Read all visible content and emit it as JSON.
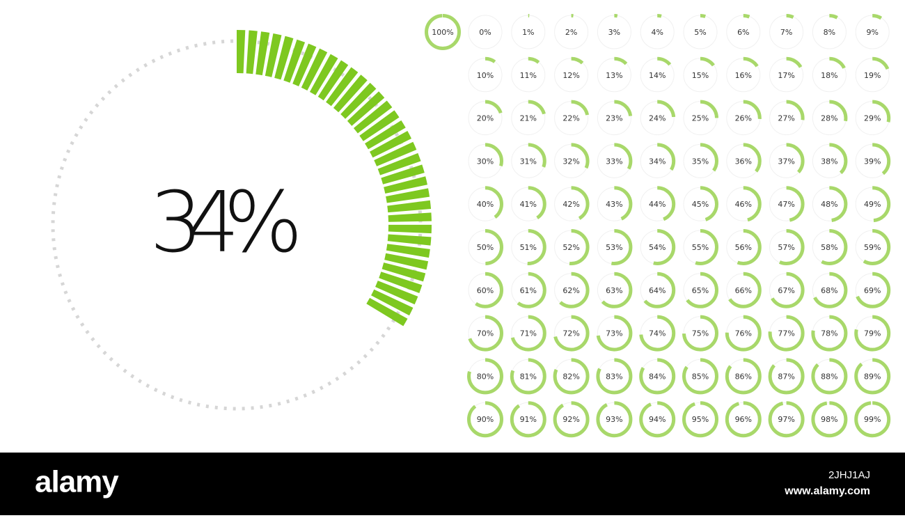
{
  "main_gauge": {
    "value": 34,
    "label": "34%"
  },
  "gauges": [
    {
      "value": 100,
      "label": "100%"
    },
    {
      "value": 0,
      "label": "0%"
    },
    {
      "value": 1,
      "label": "1%"
    },
    {
      "value": 2,
      "label": "2%"
    },
    {
      "value": 3,
      "label": "3%"
    },
    {
      "value": 4,
      "label": "4%"
    },
    {
      "value": 5,
      "label": "5%"
    },
    {
      "value": 6,
      "label": "6%"
    },
    {
      "value": 7,
      "label": "7%"
    },
    {
      "value": 8,
      "label": "8%"
    },
    {
      "value": 9,
      "label": "9%"
    },
    {
      "value": 10,
      "label": "10%"
    },
    {
      "value": 11,
      "label": "11%"
    },
    {
      "value": 12,
      "label": "12%"
    },
    {
      "value": 13,
      "label": "13%"
    },
    {
      "value": 14,
      "label": "14%"
    },
    {
      "value": 15,
      "label": "15%"
    },
    {
      "value": 16,
      "label": "16%"
    },
    {
      "value": 17,
      "label": "17%"
    },
    {
      "value": 18,
      "label": "18%"
    },
    {
      "value": 19,
      "label": "19%"
    },
    {
      "value": 20,
      "label": "20%"
    },
    {
      "value": 21,
      "label": "21%"
    },
    {
      "value": 22,
      "label": "22%"
    },
    {
      "value": 23,
      "label": "23%"
    },
    {
      "value": 24,
      "label": "24%"
    },
    {
      "value": 25,
      "label": "25%"
    },
    {
      "value": 26,
      "label": "26%"
    },
    {
      "value": 27,
      "label": "27%"
    },
    {
      "value": 28,
      "label": "28%"
    },
    {
      "value": 29,
      "label": "29%"
    },
    {
      "value": 30,
      "label": "30%"
    },
    {
      "value": 31,
      "label": "31%"
    },
    {
      "value": 32,
      "label": "32%"
    },
    {
      "value": 33,
      "label": "33%"
    },
    {
      "value": 34,
      "label": "34%"
    },
    {
      "value": 35,
      "label": "35%"
    },
    {
      "value": 36,
      "label": "36%"
    },
    {
      "value": 37,
      "label": "37%"
    },
    {
      "value": 38,
      "label": "38%"
    },
    {
      "value": 39,
      "label": "39%"
    },
    {
      "value": 40,
      "label": "40%"
    },
    {
      "value": 41,
      "label": "41%"
    },
    {
      "value": 42,
      "label": "42%"
    },
    {
      "value": 43,
      "label": "43%"
    },
    {
      "value": 44,
      "label": "44%"
    },
    {
      "value": 45,
      "label": "45%"
    },
    {
      "value": 46,
      "label": "46%"
    },
    {
      "value": 47,
      "label": "47%"
    },
    {
      "value": 48,
      "label": "48%"
    },
    {
      "value": 49,
      "label": "49%"
    },
    {
      "value": 50,
      "label": "50%"
    },
    {
      "value": 51,
      "label": "51%"
    },
    {
      "value": 52,
      "label": "52%"
    },
    {
      "value": 53,
      "label": "53%"
    },
    {
      "value": 54,
      "label": "54%"
    },
    {
      "value": 55,
      "label": "55%"
    },
    {
      "value": 56,
      "label": "56%"
    },
    {
      "value": 57,
      "label": "57%"
    },
    {
      "value": 58,
      "label": "58%"
    },
    {
      "value": 59,
      "label": "59%"
    },
    {
      "value": 60,
      "label": "60%"
    },
    {
      "value": 61,
      "label": "61%"
    },
    {
      "value": 62,
      "label": "62%"
    },
    {
      "value": 63,
      "label": "63%"
    },
    {
      "value": 64,
      "label": "64%"
    },
    {
      "value": 65,
      "label": "65%"
    },
    {
      "value": 66,
      "label": "66%"
    },
    {
      "value": 67,
      "label": "67%"
    },
    {
      "value": 68,
      "label": "68%"
    },
    {
      "value": 69,
      "label": "69%"
    },
    {
      "value": 70,
      "label": "70%"
    },
    {
      "value": 71,
      "label": "71%"
    },
    {
      "value": 72,
      "label": "72%"
    },
    {
      "value": 73,
      "label": "73%"
    },
    {
      "value": 74,
      "label": "74%"
    },
    {
      "value": 75,
      "label": "75%"
    },
    {
      "value": 76,
      "label": "76%"
    },
    {
      "value": 77,
      "label": "77%"
    },
    {
      "value": 78,
      "label": "78%"
    },
    {
      "value": 79,
      "label": "79%"
    },
    {
      "value": 80,
      "label": "80%"
    },
    {
      "value": 81,
      "label": "81%"
    },
    {
      "value": 82,
      "label": "82%"
    },
    {
      "value": 83,
      "label": "83%"
    },
    {
      "value": 84,
      "label": "84%"
    },
    {
      "value": 85,
      "label": "85%"
    },
    {
      "value": 86,
      "label": "86%"
    },
    {
      "value": 87,
      "label": "87%"
    },
    {
      "value": 88,
      "label": "88%"
    },
    {
      "value": 89,
      "label": "89%"
    },
    {
      "value": 90,
      "label": "90%"
    },
    {
      "value": 91,
      "label": "91%"
    },
    {
      "value": 92,
      "label": "92%"
    },
    {
      "value": 93,
      "label": "93%"
    },
    {
      "value": 94,
      "label": "94%"
    },
    {
      "value": 95,
      "label": "95%"
    },
    {
      "value": 96,
      "label": "96%"
    },
    {
      "value": 97,
      "label": "97%"
    },
    {
      "value": 98,
      "label": "98%"
    },
    {
      "value": 99,
      "label": "99%"
    }
  ],
  "footer": {
    "brand": "alamy",
    "image_id": "2JHJ1AJ",
    "url": "www.alamy.com"
  }
}
